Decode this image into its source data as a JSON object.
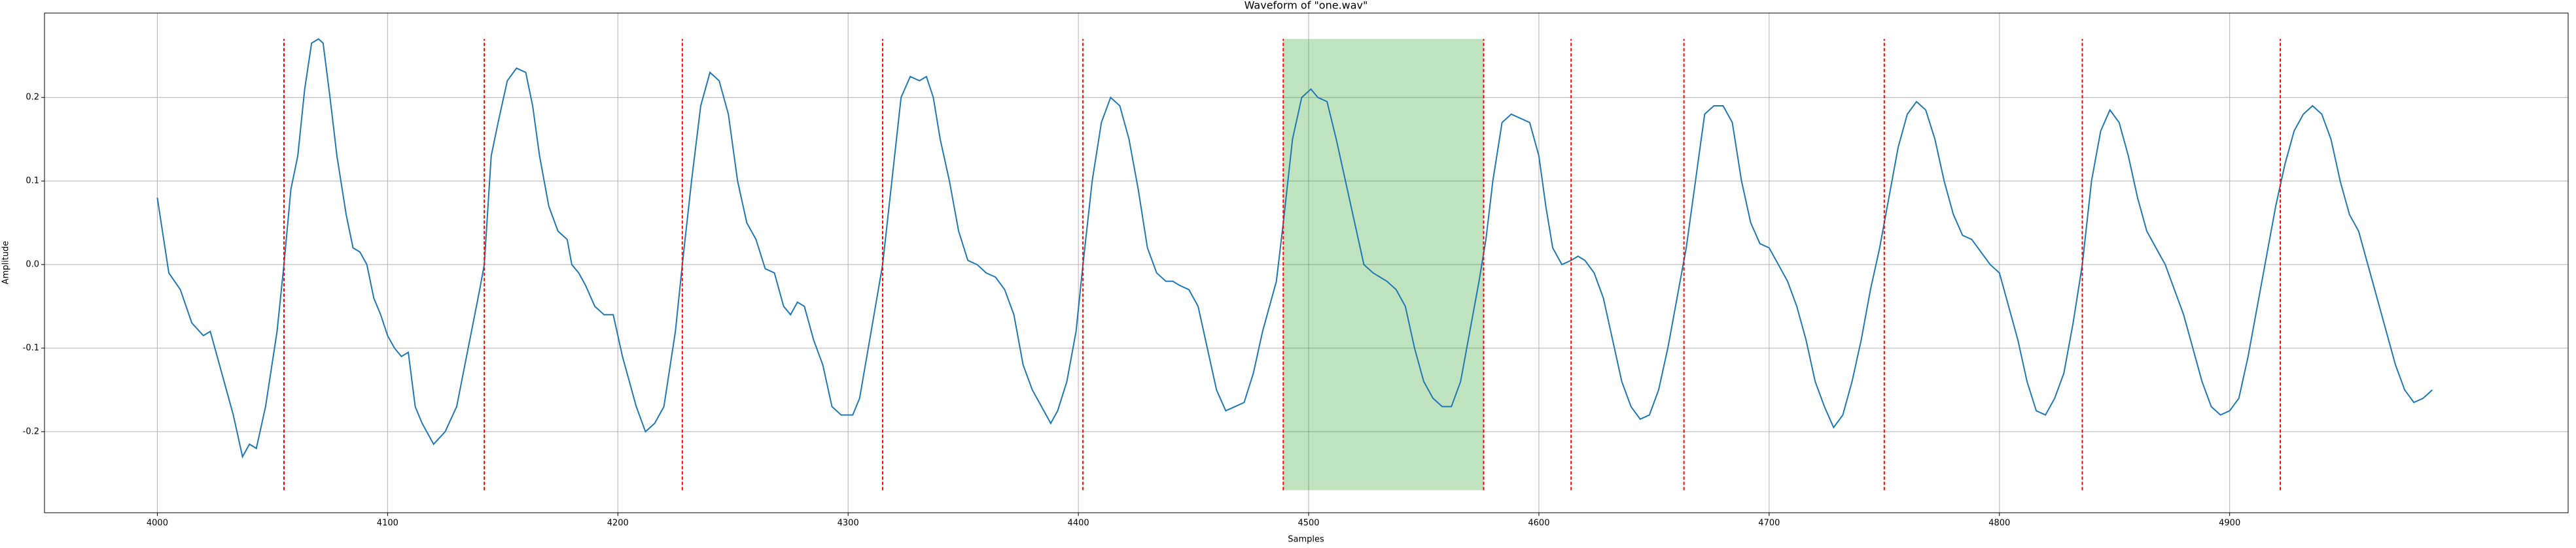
{
  "chart_data": {
    "type": "line",
    "title": "Waveform of \"one.wav\"",
    "x_label": "Samples",
    "y_label": "Amplitude",
    "xlim": [
      3951,
      5047
    ],
    "ylim": [
      -0.297,
      0.301
    ],
    "xticks": [
      4000,
      4100,
      4200,
      4300,
      4400,
      4500,
      4600,
      4700,
      4800,
      4900
    ],
    "yticks": [
      -0.2,
      -0.1,
      {
        "value": 0,
        "label": "0.0"
      },
      0.1,
      0.2
    ],
    "grid": true,
    "x": [
      4000,
      4005,
      4010,
      4015,
      4020,
      4023,
      4027,
      4030,
      4033,
      4037,
      4040,
      4043,
      4047,
      4052,
      4055,
      4058,
      4061,
      4064,
      4067,
      4070,
      4072,
      4075,
      4078,
      4082,
      4085,
      4088,
      4091,
      4094,
      4097,
      4100,
      4103,
      4106,
      4109,
      4112,
      4115,
      4120,
      4125,
      4130,
      4135,
      4140,
      4142,
      4145,
      4148,
      4152,
      4156,
      4160,
      4163,
      4166,
      4170,
      4174,
      4178,
      4180,
      4183,
      4186,
      4190,
      4194,
      4198,
      4202,
      4205,
      4208,
      4212,
      4216,
      4220,
      4225,
      4228,
      4232,
      4236,
      4240,
      4244,
      4248,
      4252,
      4256,
      4260,
      4264,
      4268,
      4272,
      4275,
      4278,
      4281,
      4285,
      4289,
      4293,
      4297,
      4302,
      4305,
      4310,
      4315,
      4319,
      4323,
      4327,
      4331,
      4334,
      4337,
      4340,
      4344,
      4348,
      4352,
      4356,
      4360,
      4364,
      4368,
      4372,
      4376,
      4380,
      4384,
      4388,
      4391,
      4395,
      4399,
      4402,
      4406,
      4410,
      4414,
      4418,
      4422,
      4426,
      4430,
      4434,
      4438,
      4441,
      4444,
      4448,
      4452,
      4456,
      4460,
      4464,
      4468,
      4472,
      4476,
      4480,
      4486,
      4489,
      4493,
      4497,
      4501,
      4504,
      4508,
      4512,
      4516,
      4520,
      4524,
      4528,
      4534,
      4538,
      4542,
      4546,
      4550,
      4554,
      4558,
      4562,
      4566,
      4570,
      4574,
      4577,
      4580,
      4584,
      4588,
      4592,
      4596,
      4600,
      4603,
      4606,
      4610,
      4614,
      4617,
      4620,
      4624,
      4628,
      4632,
      4636,
      4640,
      4644,
      4648,
      4652,
      4656,
      4660,
      4664,
      4668,
      4672,
      4676,
      4680,
      4684,
      4688,
      4692,
      4696,
      4700,
      4704,
      4708,
      4712,
      4716,
      4720,
      4724,
      4728,
      4732,
      4736,
      4740,
      4744,
      4748,
      4752,
      4756,
      4760,
      4764,
      4768,
      4772,
      4776,
      4780,
      4784,
      4788,
      4792,
      4796,
      4800,
      4804,
      4808,
      4812,
      4816,
      4820,
      4824,
      4828,
      4832,
      4836,
      4840,
      4844,
      4848,
      4852,
      4856,
      4860,
      4864,
      4868,
      4872,
      4876,
      4880,
      4884,
      4888,
      4892,
      4896,
      4900,
      4904,
      4908,
      4912,
      4916,
      4920,
      4924,
      4928,
      4932,
      4936,
      4940,
      4944,
      4948,
      4952,
      4956,
      4960,
      4964,
      4968,
      4972,
      4976,
      4980,
      4984,
      4988
    ],
    "series": [
      {
        "color": "#1f77b4",
        "values": [
          0.08,
          -0.01,
          -0.03,
          -0.07,
          -0.085,
          -0.08,
          -0.12,
          -0.15,
          -0.18,
          -0.23,
          -0.215,
          -0.22,
          -0.17,
          -0.08,
          0.0,
          0.09,
          0.13,
          0.21,
          0.265,
          0.27,
          0.265,
          0.2,
          0.13,
          0.06,
          0.02,
          0.015,
          0.0,
          -0.04,
          -0.06,
          -0.085,
          -0.1,
          -0.11,
          -0.105,
          -0.17,
          -0.19,
          -0.215,
          -0.2,
          -0.17,
          -0.1,
          -0.03,
          0.0,
          0.13,
          0.17,
          0.22,
          0.235,
          0.23,
          0.19,
          0.13,
          0.07,
          0.04,
          0.03,
          0.0,
          -0.01,
          -0.025,
          -0.05,
          -0.06,
          -0.06,
          -0.11,
          -0.14,
          -0.17,
          -0.2,
          -0.19,
          -0.17,
          -0.08,
          0.0,
          0.1,
          0.19,
          0.23,
          0.22,
          0.18,
          0.1,
          0.05,
          0.03,
          -0.005,
          -0.01,
          -0.05,
          -0.06,
          -0.045,
          -0.05,
          -0.09,
          -0.12,
          -0.17,
          -0.18,
          -0.18,
          -0.16,
          -0.08,
          0.0,
          0.1,
          0.2,
          0.225,
          0.22,
          0.225,
          0.2,
          0.15,
          0.1,
          0.04,
          0.005,
          0.0,
          -0.01,
          -0.015,
          -0.03,
          -0.06,
          -0.12,
          -0.15,
          -0.17,
          -0.19,
          -0.175,
          -0.14,
          -0.08,
          0.0,
          0.1,
          0.17,
          0.2,
          0.19,
          0.15,
          0.09,
          0.02,
          -0.01,
          -0.02,
          -0.02,
          -0.025,
          -0.03,
          -0.05,
          -0.1,
          -0.15,
          -0.175,
          -0.17,
          -0.165,
          -0.13,
          -0.08,
          -0.02,
          0.05,
          0.15,
          0.2,
          0.21,
          0.2,
          0.195,
          0.15,
          0.1,
          0.05,
          0.0,
          -0.01,
          -0.02,
          -0.03,
          -0.05,
          -0.1,
          -0.14,
          -0.16,
          -0.17,
          -0.17,
          -0.14,
          -0.08,
          -0.02,
          0.03,
          0.1,
          0.17,
          0.18,
          0.175,
          0.17,
          0.13,
          0.07,
          0.02,
          0.0,
          0.005,
          0.01,
          0.005,
          -0.01,
          -0.04,
          -0.09,
          -0.14,
          -0.17,
          -0.185,
          -0.18,
          -0.15,
          -0.1,
          -0.04,
          0.02,
          0.1,
          0.18,
          0.19,
          0.19,
          0.17,
          0.1,
          0.05,
          0.025,
          0.02,
          0.0,
          -0.02,
          -0.05,
          -0.09,
          -0.14,
          -0.17,
          -0.195,
          -0.18,
          -0.14,
          -0.09,
          -0.03,
          0.02,
          0.08,
          0.14,
          0.18,
          0.195,
          0.185,
          0.15,
          0.1,
          0.06,
          0.035,
          0.03,
          0.015,
          0.0,
          -0.01,
          -0.05,
          -0.09,
          -0.14,
          -0.175,
          -0.18,
          -0.16,
          -0.13,
          -0.07,
          0.0,
          0.1,
          0.16,
          0.185,
          0.17,
          0.13,
          0.08,
          0.04,
          0.02,
          0.0,
          -0.03,
          -0.06,
          -0.1,
          -0.14,
          -0.17,
          -0.18,
          -0.175,
          -0.16,
          -0.11,
          -0.05,
          0.01,
          0.07,
          0.12,
          0.16,
          0.18,
          0.19,
          0.18,
          0.15,
          0.1,
          0.06,
          0.04,
          0.0,
          -0.04,
          -0.08,
          -0.12,
          -0.15,
          -0.165,
          -0.16,
          -0.15
        ]
      }
    ],
    "vlines": {
      "x": [
        4055,
        4142,
        4228,
        4315,
        4402,
        4489,
        4576,
        4614,
        4663,
        4750,
        4836,
        4922
      ],
      "ymin": -0.27,
      "ymax": 0.27,
      "color": "#ff0000"
    },
    "span": {
      "x": [
        4489,
        4576
      ],
      "ymin": -0.27,
      "ymax": 0.27,
      "color": "#2ca02c"
    }
  }
}
